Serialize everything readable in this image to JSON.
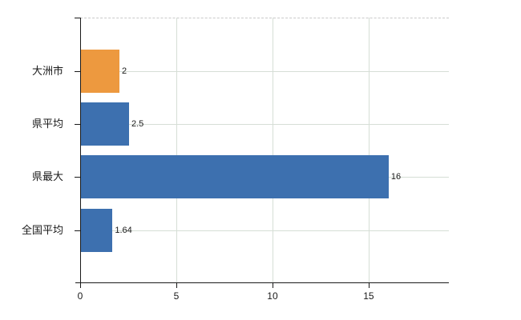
{
  "chart_data": {
    "type": "bar",
    "orientation": "horizontal",
    "title": "",
    "xlabel": "",
    "ylabel": "",
    "categories": [
      "大洲市",
      "県平均",
      "県最大",
      "全国平均"
    ],
    "values": [
      2,
      2.5,
      16,
      1.64
    ],
    "value_labels": [
      "2",
      "2.5",
      "16",
      "1.64"
    ],
    "bar_colors": [
      "#ED993F",
      "#3D70AF",
      "#3D70AF",
      "#3D70AF"
    ],
    "x_ticks": [
      0,
      5,
      10,
      15
    ],
    "x_tick_labels": [
      "0",
      "5",
      "10",
      "15"
    ],
    "xlim": [
      0,
      19.17
    ],
    "grid": "on",
    "legend": "none",
    "colors": {
      "highlight_bar": "#ED993F",
      "default_bar": "#3D70AF",
      "gridline": "#D6DED6",
      "axis": "#1A1A1A",
      "top_border_dashed": "#C9C9C9",
      "background": "#FFFFFF"
    }
  }
}
